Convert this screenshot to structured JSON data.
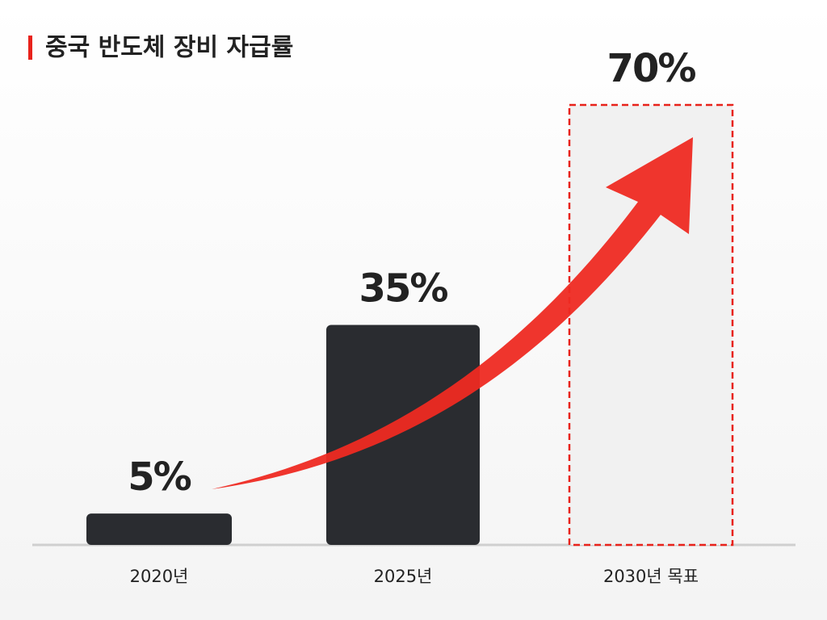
{
  "chart_data": {
    "type": "bar",
    "title": "중국 반도체 장비 자급률",
    "categories": [
      "2020년",
      "2025년",
      "2030년 목표"
    ],
    "values": [
      5,
      35,
      70
    ],
    "value_labels": [
      "5%",
      "35%",
      "70%"
    ],
    "colors": [
      "#2a2c30",
      "#2a2c30",
      "#f1f1f1"
    ],
    "accent_color": "#e8221b",
    "target": [
      false,
      false,
      true
    ]
  }
}
